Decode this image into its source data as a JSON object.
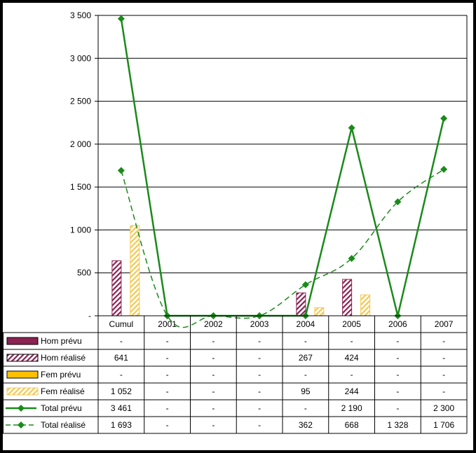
{
  "colors": {
    "hom_prevu": "#8B2252",
    "hom_realise": "#8B2252",
    "fem_prevu": "#FFC000",
    "fem_realise": "#F5C850",
    "total": "#1A8A1A",
    "grid": "#000000"
  },
  "chart_data": {
    "type": "bar",
    "categories": [
      "Cumul",
      "2001",
      "2002",
      "2003",
      "2004",
      "2005",
      "2006",
      "2007"
    ],
    "y_ticks": [
      "-",
      "500",
      "1 000",
      "1 500",
      "2 000",
      "2 500",
      "3 000",
      "3 500"
    ],
    "ylim": [
      0,
      3500
    ],
    "grid": true,
    "legend": "table-below",
    "series": [
      {
        "name": "Hom prévu",
        "kind": "bar",
        "pattern": "solid",
        "values": [
          0,
          0,
          0,
          0,
          0,
          0,
          0,
          0
        ],
        "labels": [
          "-",
          "-",
          "-",
          "-",
          "-",
          "-",
          "-",
          "-"
        ]
      },
      {
        "name": "Hom réalisé",
        "kind": "bar",
        "pattern": "hatch",
        "values": [
          641,
          0,
          0,
          0,
          267,
          424,
          0,
          0
        ],
        "labels": [
          "641",
          "-",
          "-",
          "-",
          "267",
          "424",
          "-",
          "-"
        ]
      },
      {
        "name": "Fem prévu",
        "kind": "bar",
        "pattern": "solid",
        "values": [
          0,
          0,
          0,
          0,
          0,
          0,
          0,
          0
        ],
        "labels": [
          "-",
          "-",
          "-",
          "-",
          "-",
          "-",
          "-",
          "-"
        ]
      },
      {
        "name": "Fem réalisé",
        "kind": "bar",
        "pattern": "hatch",
        "values": [
          1052,
          0,
          0,
          0,
          95,
          244,
          0,
          0
        ],
        "labels": [
          "1 052",
          "-",
          "-",
          "-",
          "95",
          "244",
          "-",
          "-"
        ]
      },
      {
        "name": "Total prévu",
        "kind": "line",
        "dash": "solid",
        "values": [
          3461,
          0,
          0,
          0,
          0,
          2190,
          0,
          2300
        ],
        "labels": [
          "3 461",
          "-",
          "-",
          "-",
          "-",
          "2 190",
          "-",
          "2 300"
        ]
      },
      {
        "name": "Total réalisé",
        "kind": "line",
        "dash": "dashed",
        "smooth": true,
        "values": [
          1693,
          0,
          0,
          0,
          362,
          668,
          1328,
          1706
        ],
        "labels": [
          "1 693",
          "-",
          "-",
          "-",
          "362",
          "668",
          "1 328",
          "1 706"
        ]
      }
    ]
  }
}
